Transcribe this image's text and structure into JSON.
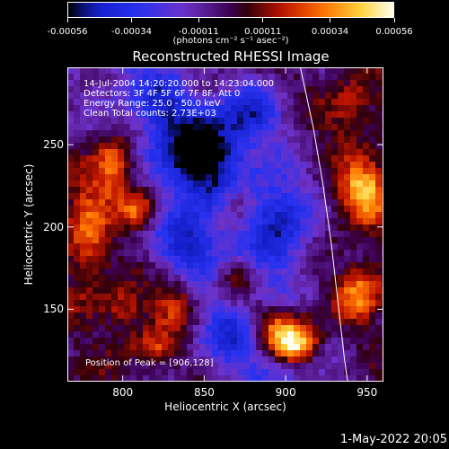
{
  "colorbar": {
    "ticks": [
      "-0.00056",
      "-0.00034",
      "-0.00011",
      "0.00011",
      "0.00034",
      "0.00056"
    ],
    "unit": "(photons cm⁻² s⁻¹ asec⁻²)"
  },
  "info": {
    "line1": "14-Jul-2004 14:20:20.000 to 14:23:04.000",
    "line2": "Detectors: 3F 4F 5F 6F 7F 8F, Att 0",
    "line3": "Energy Range: 25.0 - 50.0 keV",
    "line4": "Clean     Total counts: 2.73E+03"
  },
  "peak_text": "Position of Peak = [906,128]",
  "date_stamp": "1-May-2022 20:05",
  "chart_data": {
    "type": "heatmap",
    "title": "Reconstructed RHESSI Image",
    "xlabel": "Heliocentric X (arcsec)",
    "ylabel": "Heliocentric Y (arcsec)",
    "xlim": [
      766,
      960
    ],
    "ylim": [
      106,
      297
    ],
    "xticks": [
      800,
      850,
      900,
      950
    ],
    "yticks": [
      150,
      200,
      250
    ],
    "zlim": [
      -0.00056,
      0.00056
    ],
    "colorbar_ticks": [
      -0.00056,
      -0.00034,
      -0.00011,
      0.00011,
      0.00034,
      0.00056
    ],
    "peak": [
      906,
      128
    ],
    "limb_curve": {
      "x": [
        909,
        917,
        923,
        928,
        932,
        936,
        938
      ],
      "y": [
        297,
        260,
        225,
        190,
        155,
        120,
        106
      ]
    },
    "bright_sources": [
      {
        "x": 906,
        "y": 128,
        "amp": 0.00056,
        "sx": 10,
        "sy": 8
      },
      {
        "x": 893,
        "y": 140,
        "amp": 0.00042,
        "sx": 14,
        "sy": 10
      },
      {
        "x": 795,
        "y": 236,
        "amp": 0.00044,
        "sx": 9,
        "sy": 14
      },
      {
        "x": 810,
        "y": 210,
        "amp": 0.0004,
        "sx": 8,
        "sy": 9
      },
      {
        "x": 778,
        "y": 196,
        "amp": 0.00028,
        "sx": 10,
        "sy": 25
      },
      {
        "x": 948,
        "y": 222,
        "amp": 0.00048,
        "sx": 10,
        "sy": 12
      },
      {
        "x": 945,
        "y": 160,
        "amp": 0.00034,
        "sx": 10,
        "sy": 12
      },
      {
        "x": 832,
        "y": 155,
        "amp": 0.0003,
        "sx": 10,
        "sy": 12
      },
      {
        "x": 870,
        "y": 168,
        "amp": 0.00024,
        "sx": 8,
        "sy": 10
      },
      {
        "x": 800,
        "y": 150,
        "amp": 0.00022,
        "sx": 9,
        "sy": 10
      },
      {
        "x": 940,
        "y": 270,
        "amp": 0.0002,
        "sx": 10,
        "sy": 12
      },
      {
        "x": 820,
        "y": 126,
        "amp": 0.00024,
        "sx": 10,
        "sy": 8
      },
      {
        "x": 870,
        "y": 215,
        "amp": 0.00018,
        "sx": 8,
        "sy": 12
      }
    ],
    "dark_sources": [
      {
        "x": 850,
        "y": 245,
        "amp": -0.0005,
        "sx": 18,
        "sy": 18
      },
      {
        "x": 897,
        "y": 206,
        "amp": -0.0004,
        "sx": 14,
        "sy": 22
      },
      {
        "x": 880,
        "y": 270,
        "amp": -0.00034,
        "sx": 14,
        "sy": 14
      },
      {
        "x": 840,
        "y": 190,
        "amp": -0.0003,
        "sx": 12,
        "sy": 12
      },
      {
        "x": 870,
        "y": 135,
        "amp": -0.00026,
        "sx": 12,
        "sy": 12
      },
      {
        "x": 825,
        "y": 275,
        "amp": -0.00022,
        "sx": 10,
        "sy": 10
      }
    ]
  }
}
